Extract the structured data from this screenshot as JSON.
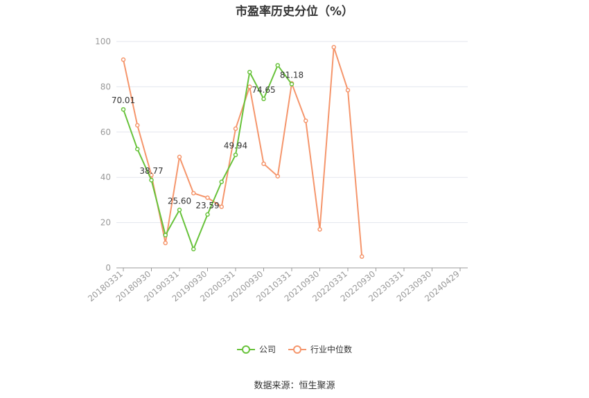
{
  "chart_data": {
    "type": "line",
    "title": "市盈率历史分位（%）",
    "categories": [
      "20180331",
      "20180630",
      "20180930",
      "20181231",
      "20190331",
      "20190630",
      "20190930",
      "20191231",
      "20200331",
      "20200630",
      "20200930",
      "20201231",
      "20210331",
      "20210630",
      "20210930",
      "20211231",
      "20220331",
      "20220630",
      "20220930",
      "20221231",
      "20230331",
      "20230630",
      "20230930",
      "20231231",
      "20240429"
    ],
    "x_tick_labels": [
      "20180331",
      "20180930",
      "20190331",
      "20190930",
      "20200331",
      "20200930",
      "20210331",
      "20210930",
      "20220331",
      "20220930",
      "20230331",
      "20230930",
      "20240429"
    ],
    "ylim": [
      0,
      100
    ],
    "y_ticks": [
      0,
      20,
      40,
      60,
      80,
      100
    ],
    "grid": true,
    "legend_position": "bottom",
    "series": [
      {
        "name": "公司",
        "color": "#67c23a",
        "values": [
          70.01,
          52.5,
          38.77,
          14.5,
          25.6,
          8.3,
          23.59,
          38.0,
          49.94,
          86.5,
          74.65,
          89.5,
          81.18,
          null,
          null,
          null,
          null,
          null,
          null,
          null,
          null,
          null,
          null,
          null,
          null
        ],
        "data_labels": {
          "0": "70.01",
          "2": "38.77",
          "4": "25.60",
          "6": "23.59",
          "8": "49.94",
          "10": "74.65",
          "12": "81.18"
        }
      },
      {
        "name": "行业中位数",
        "color": "#f5956b",
        "values": [
          92.0,
          63.0,
          41.0,
          11.0,
          49.0,
          33.0,
          31.0,
          27.0,
          61.5,
          80.0,
          46.0,
          40.5,
          81.5,
          65.0,
          17.0,
          97.5,
          78.5,
          5.0,
          null,
          null,
          null,
          null,
          null,
          null,
          null
        ]
      }
    ]
  },
  "source": "数据来源：恒生聚源"
}
